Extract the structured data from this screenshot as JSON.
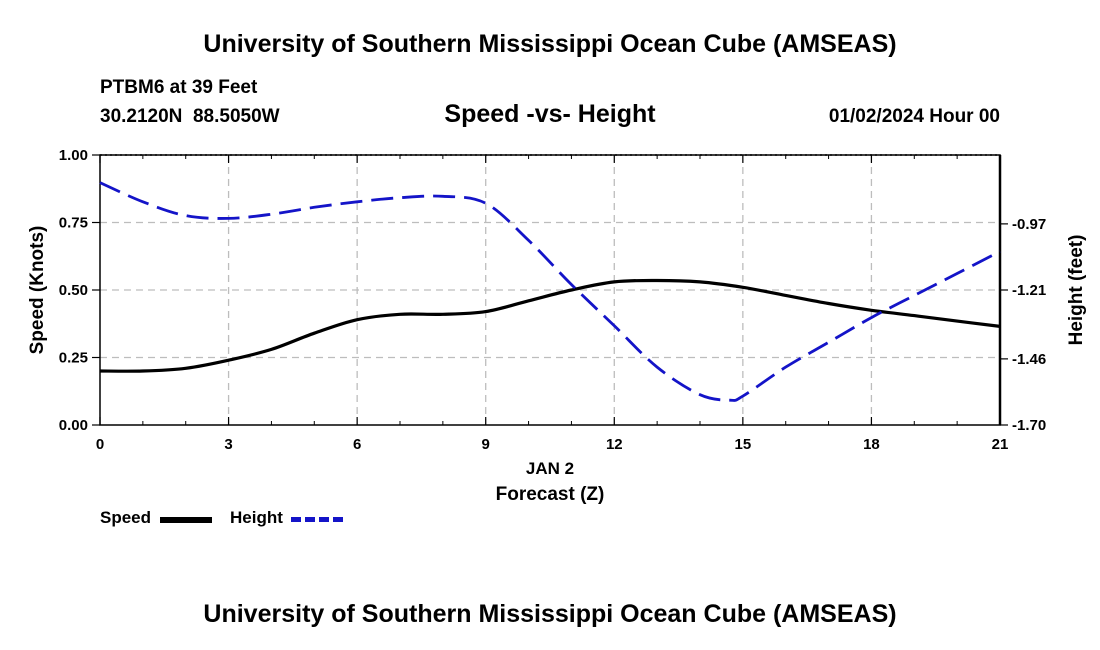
{
  "header": {
    "title": "University of Southern Mississippi Ocean Cube (AMSEAS)",
    "station": "PTBM6 at 39 Feet",
    "coords": "30.2120N  88.5050W",
    "subtitle": "Speed -vs- Height",
    "datetime": "01/02/2024 Hour 00"
  },
  "footer": {
    "title": "University of Southern Mississippi Ocean Cube (AMSEAS)"
  },
  "legend": {
    "speed_label": "Speed",
    "height_label": "Height"
  },
  "colors": {
    "speed": "#000000",
    "height": "#1414c8",
    "grid": "#bdbdbd"
  },
  "chart_data": {
    "type": "line",
    "title": "Speed -vs- Height",
    "xlabel_date": "JAN 2",
    "xlabel": "Forecast (Z)",
    "ylabel": "Speed (Knots)",
    "y2label": "Height (feet)",
    "x_ticks": [
      "0",
      "3",
      "6",
      "9",
      "12",
      "15",
      "18",
      "21"
    ],
    "xlim": [
      0,
      21
    ],
    "y_ticks": [
      "0.00",
      "0.25",
      "0.50",
      "0.75",
      "1.00"
    ],
    "ylim": [
      0,
      1
    ],
    "y2_ticks": [
      "-1.70",
      "-1.46",
      "-1.21",
      "-0.97"
    ],
    "y2_tick_values": [
      -1.7,
      -1.46,
      -1.21,
      -0.97
    ],
    "y2lim": [
      -1.7,
      -0.72
    ],
    "grid": true,
    "series": [
      {
        "name": "Speed",
        "axis": "left",
        "style": "solid",
        "x": [
          0,
          1,
          2,
          3,
          4,
          5,
          6,
          7,
          8,
          9,
          10,
          11,
          12,
          13,
          14,
          15,
          16,
          17,
          18,
          19,
          20,
          21
        ],
        "values": [
          0.2,
          0.2,
          0.21,
          0.24,
          0.28,
          0.34,
          0.39,
          0.41,
          0.41,
          0.42,
          0.46,
          0.5,
          0.53,
          0.535,
          0.53,
          0.51,
          0.48,
          0.45,
          0.425,
          0.405,
          0.385,
          0.365
        ]
      },
      {
        "name": "Height",
        "axis": "right",
        "style": "dashed",
        "x": [
          0,
          1,
          2,
          3,
          4,
          5,
          6,
          7,
          8,
          9,
          10,
          11,
          12,
          13,
          14,
          14.7,
          15,
          16,
          17,
          18,
          19,
          20,
          21
        ],
        "values": [
          -0.82,
          -0.89,
          -0.94,
          -0.95,
          -0.935,
          -0.91,
          -0.89,
          -0.875,
          -0.87,
          -0.895,
          -1.03,
          -1.19,
          -1.34,
          -1.49,
          -1.59,
          -1.61,
          -1.595,
          -1.49,
          -1.4,
          -1.31,
          -1.23,
          -1.15,
          -1.07
        ]
      }
    ]
  }
}
